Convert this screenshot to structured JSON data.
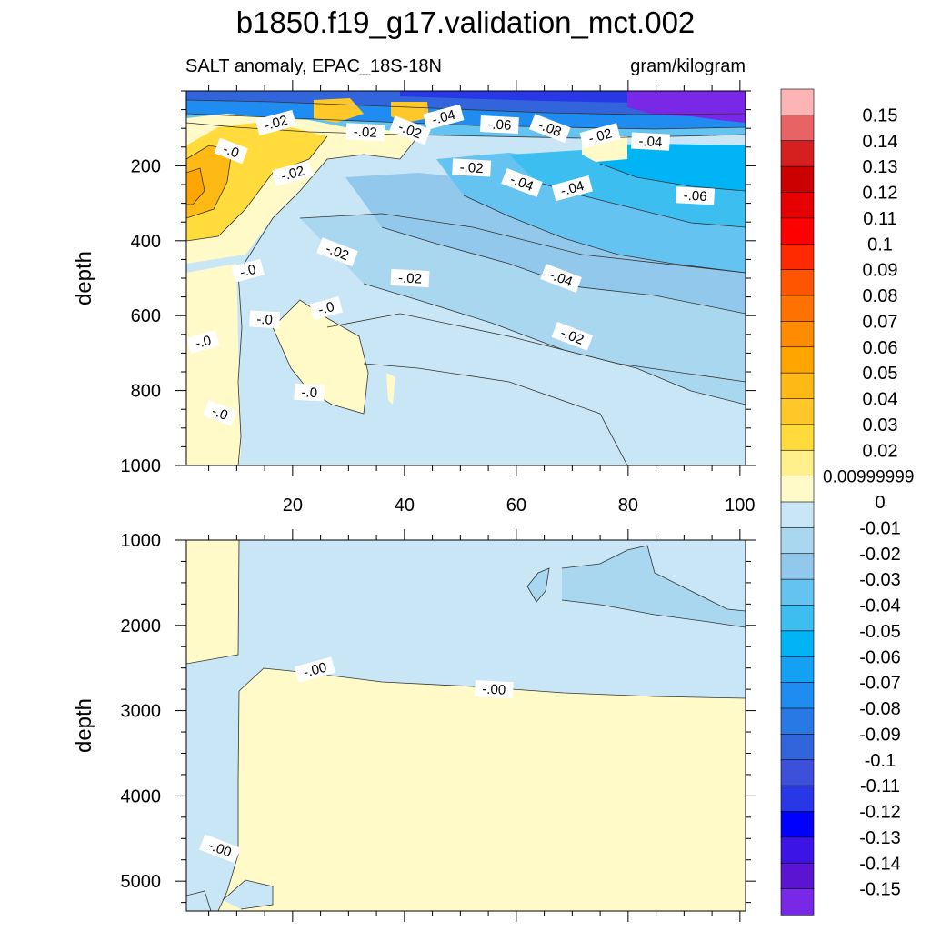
{
  "title": "b1850.f19_g17.validation_mct.002",
  "subtitle_left": "SALT anomaly, EPAC_18S-18N",
  "subtitle_right": "gram/kilogram",
  "chart_data": [
    {
      "type": "heatmap",
      "panel": "upper",
      "title": "b1850.f19_g17.validation_mct.002",
      "subtitle": "SALT anomaly, EPAC_18S-18N",
      "units": "gram/kilogram",
      "xlabel": "",
      "ylabel": "depth",
      "xlim": [
        1,
        101
      ],
      "ylim": [
        1000,
        0
      ],
      "xticks": [
        20,
        40,
        60,
        80,
        100
      ],
      "yticks": [
        200,
        400,
        600,
        800,
        1000
      ],
      "contour_labels": [
        {
          "text": "-.02",
          "x": 17,
          "y": 85
        },
        {
          "text": "-.02",
          "x": 33,
          "y": 110
        },
        {
          "text": "-.02",
          "x": 41,
          "y": 105
        },
        {
          "text": "-.04",
          "x": 47,
          "y": 70
        },
        {
          "text": "-.06",
          "x": 57,
          "y": 90
        },
        {
          "text": "-.08",
          "x": 66,
          "y": 100
        },
        {
          "text": "-.02",
          "x": 75,
          "y": 120
        },
        {
          "text": "-.04",
          "x": 84,
          "y": 135
        },
        {
          "text": "-.0",
          "x": 9,
          "y": 160
        },
        {
          "text": "-.02",
          "x": 20,
          "y": 220
        },
        {
          "text": "-.02",
          "x": 52,
          "y": 205
        },
        {
          "text": "-.04",
          "x": 61,
          "y": 245
        },
        {
          "text": "-.04",
          "x": 70,
          "y": 260
        },
        {
          "text": "-.06",
          "x": 92,
          "y": 280
        },
        {
          "text": "-.02",
          "x": 28,
          "y": 430
        },
        {
          "text": "-.0",
          "x": 12,
          "y": 480
        },
        {
          "text": "-.02",
          "x": 41,
          "y": 500
        },
        {
          "text": "-.04",
          "x": 68,
          "y": 500
        },
        {
          "text": "-.0",
          "x": 26,
          "y": 580
        },
        {
          "text": "-.0",
          "x": 15,
          "y": 610
        },
        {
          "text": "-.02",
          "x": 70,
          "y": 655
        },
        {
          "text": "-.0",
          "x": 4,
          "y": 670
        },
        {
          "text": "-.0",
          "x": 23,
          "y": 805
        },
        {
          "text": "-.0",
          "x": 7,
          "y": 860
        }
      ]
    },
    {
      "type": "heatmap",
      "panel": "lower",
      "xlabel": "",
      "ylabel": "depth",
      "xlim": [
        1,
        101
      ],
      "ylim": [
        5350,
        1000
      ],
      "xticks": [
        20,
        40,
        60,
        80,
        100
      ],
      "yticks": [
        1000,
        2000,
        3000,
        4000,
        5000
      ],
      "contour_labels": [
        {
          "text": "-.00",
          "x": 24,
          "y": 2520
        },
        {
          "text": "-.00",
          "x": 56,
          "y": 2750
        },
        {
          "text": "-.00",
          "x": 7,
          "y": 4620
        }
      ]
    },
    {
      "type": "colorbar",
      "labels": [
        "0.15",
        "0.14",
        "0.13",
        "0.12",
        "0.11",
        "0.1",
        "0.09",
        "0.08",
        "0.07",
        "0.06",
        "0.05",
        "0.04",
        "0.03",
        "0.02",
        "0.00999999",
        "0",
        "-0.01",
        "-0.02",
        "-0.03",
        "-0.04",
        "-0.05",
        "-0.06",
        "-0.07",
        "-0.08",
        "-0.09",
        "-0.1",
        "-0.11",
        "-0.12",
        "-0.13",
        "-0.14",
        "-0.15"
      ],
      "colors": [
        "#fdb4b4",
        "#e86464",
        "#d62020",
        "#cc0000",
        "#e60000",
        "#ff0000",
        "#ff2a00",
        "#ff5500",
        "#ff7200",
        "#ff8c00",
        "#ffa500",
        "#ffb914",
        "#ffc828",
        "#ffdc3c",
        "#fff08c",
        "#fffac8",
        "#c8e6f5",
        "#aad7f0",
        "#91c8eb",
        "#64c3f0",
        "#3cbef0",
        "#00b4f5",
        "#14a0f5",
        "#1e8cf0",
        "#2878e6",
        "#3264dc",
        "#3c50dc",
        "#2838e6",
        "#0000ff",
        "#3c14e6",
        "#5a14d2",
        "#7828e6"
      ]
    }
  ]
}
